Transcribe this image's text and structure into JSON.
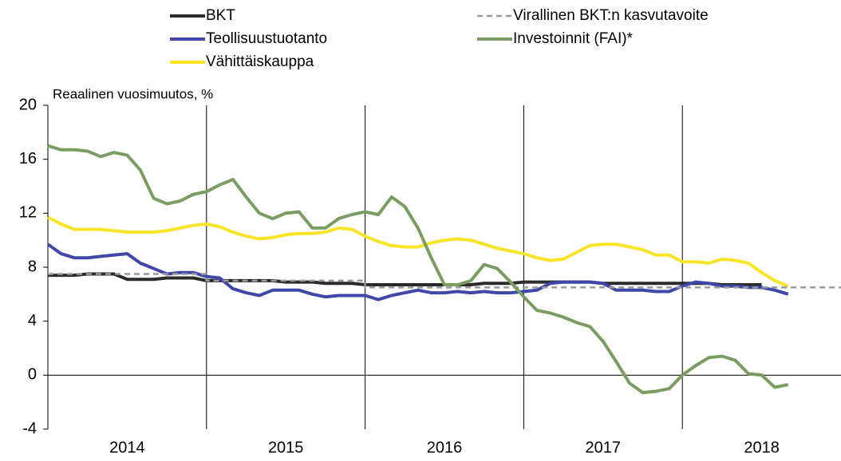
{
  "chart_data": {
    "type": "line",
    "y_axis_label": "Reaalinen vuosimuutos, %",
    "xlim": [
      2014,
      2019
    ],
    "xticks": [
      {
        "value": 2014.5,
        "label": "2014"
      },
      {
        "value": 2015.5,
        "label": "2015"
      },
      {
        "value": 2016.5,
        "label": "2016"
      },
      {
        "value": 2017.5,
        "label": "2017"
      },
      {
        "value": 2018.5,
        "label": "2018"
      }
    ],
    "xgrid": [
      2015,
      2016,
      2017,
      2018
    ],
    "ylim": [
      -4,
      20
    ],
    "yticks": [
      -4,
      0,
      4,
      8,
      12,
      16,
      20
    ],
    "x": [
      2014,
      2014.083,
      2014.167,
      2014.25,
      2014.333,
      2014.417,
      2014.5,
      2014.583,
      2014.667,
      2014.75,
      2014.833,
      2014.917,
      2015,
      2015.083,
      2015.167,
      2015.25,
      2015.333,
      2015.417,
      2015.5,
      2015.583,
      2015.667,
      2015.75,
      2015.833,
      2015.917,
      2016,
      2016.083,
      2016.167,
      2016.25,
      2016.333,
      2016.417,
      2016.5,
      2016.583,
      2016.667,
      2016.75,
      2016.833,
      2016.917,
      2017,
      2017.083,
      2017.167,
      2017.25,
      2017.333,
      2017.417,
      2017.5,
      2017.583,
      2017.667,
      2017.75,
      2017.833,
      2017.917,
      2018,
      2018.083,
      2018.167,
      2018.25,
      2018.333,
      2018.417,
      2018.5,
      2018.583,
      2018.667
    ],
    "series": [
      {
        "name": "BKT",
        "color": "#2b2b2b",
        "values": [
          7.4,
          7.4,
          7.4,
          7.5,
          7.5,
          7.5,
          7.1,
          7.1,
          7.1,
          7.2,
          7.2,
          7.2,
          7.0,
          7.0,
          7.0,
          7.0,
          7.0,
          7.0,
          6.9,
          6.9,
          6.9,
          6.8,
          6.8,
          6.8,
          6.7,
          6.7,
          6.7,
          6.7,
          6.7,
          6.7,
          6.7,
          6.7,
          6.7,
          6.8,
          6.8,
          6.8,
          6.9,
          6.9,
          6.9,
          6.9,
          6.9,
          6.9,
          6.8,
          6.8,
          6.8,
          6.8,
          6.8,
          6.8,
          6.8,
          6.8,
          6.8,
          6.7,
          6.7,
          6.7,
          6.7,
          null,
          null
        ]
      },
      {
        "name": "Teollisuustuotanto",
        "color": "#3f48a8",
        "values": [
          9.7,
          9.0,
          8.7,
          8.7,
          8.8,
          8.9,
          9.0,
          8.3,
          7.9,
          7.5,
          7.6,
          7.6,
          7.3,
          7.2,
          6.4,
          6.1,
          5.9,
          6.3,
          6.3,
          6.3,
          6.0,
          5.8,
          5.9,
          5.9,
          5.9,
          5.6,
          5.9,
          6.1,
          6.3,
          6.1,
          6.1,
          6.2,
          6.1,
          6.2,
          6.1,
          6.1,
          6.2,
          6.3,
          6.8,
          6.9,
          6.9,
          6.9,
          6.8,
          6.3,
          6.3,
          6.3,
          6.2,
          6.2,
          6.6,
          6.9,
          6.8,
          6.6,
          6.6,
          6.5,
          6.5,
          6.3,
          6.0
        ]
      },
      {
        "name": "Vähittäiskauppa",
        "color": "#f8e52a",
        "values": [
          11.7,
          11.2,
          10.8,
          10.8,
          10.8,
          10.7,
          10.6,
          10.6,
          10.6,
          10.7,
          10.9,
          11.1,
          11.2,
          11.0,
          10.6,
          10.3,
          10.1,
          10.2,
          10.4,
          10.5,
          10.5,
          10.6,
          10.9,
          10.8,
          10.3,
          9.9,
          9.6,
          9.5,
          9.5,
          9.8,
          10.0,
          10.1,
          10.0,
          9.7,
          9.4,
          9.2,
          9.0,
          8.7,
          8.5,
          8.6,
          9.1,
          9.6,
          9.7,
          9.7,
          9.5,
          9.3,
          8.9,
          8.9,
          8.4,
          8.4,
          8.3,
          8.6,
          8.5,
          8.3,
          7.6,
          7.0,
          6.6
        ]
      },
      {
        "name": "Virallinen BKT:n kasvutavoite",
        "color": "#9a9a9a",
        "dashed": true,
        "x": [
          2014,
          2015,
          2015,
          2016,
          2016,
          2019
        ],
        "values": [
          7.5,
          7.5,
          7.0,
          7.0,
          6.5,
          6.5
        ]
      },
      {
        "name": "Investoinnit (FAI)*",
        "color": "#7a9e62",
        "values": [
          17.0,
          16.7,
          16.7,
          16.6,
          16.2,
          16.5,
          16.3,
          15.2,
          13.1,
          12.7,
          12.9,
          13.4,
          13.6,
          14.1,
          14.5,
          13.2,
          12.0,
          11.6,
          12.0,
          12.1,
          10.9,
          10.9,
          11.6,
          11.9,
          12.1,
          11.9,
          13.2,
          12.5,
          10.9,
          8.7,
          6.7,
          6.7,
          7.0,
          8.2,
          7.9,
          6.9,
          5.8,
          4.8,
          4.6,
          4.3,
          3.9,
          3.6,
          2.5,
          1.0,
          -0.6,
          -1.3,
          -1.2,
          -1.0,
          0.0,
          0.7,
          1.3,
          1.4,
          1.1,
          0.1,
          0.0,
          -0.9,
          -0.7
        ]
      }
    ]
  }
}
